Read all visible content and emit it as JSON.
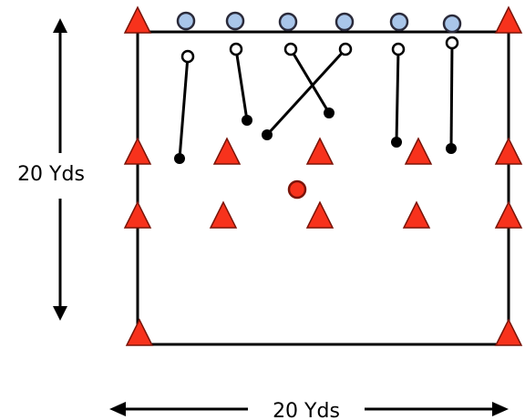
{
  "dimensions": {
    "height_label": "20 Yds",
    "width_label": "20 Yds"
  },
  "colors": {
    "cone": "#f7321c",
    "cone_stroke": "#7a1408",
    "defender": "#a9c6ea",
    "defender_stroke": "#2a2a3a",
    "ball": "#f7321c",
    "line": "#000000"
  },
  "legend_items": {
    "cone": "cone",
    "defender": "defender-circle",
    "ball": "ball",
    "runner": "runner-path"
  }
}
